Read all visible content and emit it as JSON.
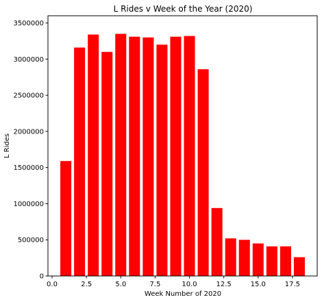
{
  "chart_data": {
    "type": "bar",
    "title": "L Rides v Week of the Year (2020)",
    "xlabel": "Week Number of 2020",
    "ylabel": "L Rides",
    "x": [
      1,
      2,
      3,
      4,
      5,
      6,
      7,
      8,
      9,
      10,
      11,
      12,
      13,
      14,
      15,
      16,
      17,
      18
    ],
    "values": [
      1590000,
      3160000,
      3340000,
      3100000,
      3350000,
      3310000,
      3300000,
      3200000,
      3310000,
      3320000,
      2860000,
      940000,
      520000,
      500000,
      450000,
      410000,
      410000,
      260000
    ],
    "bar_color": "#ff0000",
    "xlim": [
      -0.3,
      19.3
    ],
    "ylim": [
      0,
      3600000
    ],
    "xticks": [
      0.0,
      2.5,
      5.0,
      7.5,
      10.0,
      12.5,
      15.0,
      17.5
    ],
    "xtick_labels": [
      "0.0",
      "2.5",
      "5.0",
      "7.5",
      "10.0",
      "12.5",
      "15.0",
      "17.5"
    ],
    "yticks": [
      0,
      500000,
      1000000,
      1500000,
      2000000,
      2500000,
      3000000,
      3500000
    ],
    "ytick_labels": [
      "0",
      "500000",
      "1000000",
      "1500000",
      "2000000",
      "2500000",
      "3000000",
      "3500000"
    ],
    "grid": false,
    "legend": "none"
  }
}
